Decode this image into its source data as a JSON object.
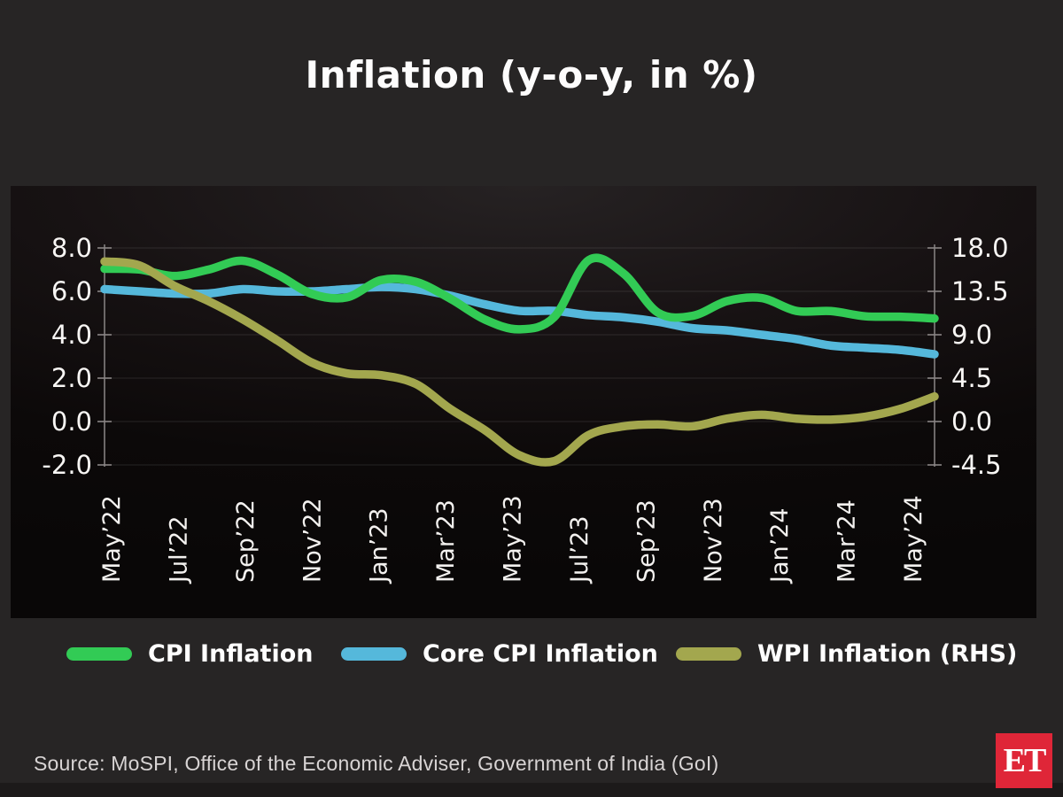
{
  "page": {
    "title": "Inflation (y-o-y, in %)",
    "source": "Source: MoSPI, Office of the Economic Adviser, Government of India (GoI)",
    "logo_text": "ET",
    "logo_color": "#df2638",
    "background_color": "#272525",
    "panel_color": "#0d0a0b"
  },
  "chart_data": {
    "type": "line",
    "title": "Inflation (y-o-y, in %)",
    "frequency": "monthly",
    "grid": "faint horizontal",
    "legend_position": "bottom",
    "x_tick_labels": [
      "May’22",
      "Jul’22",
      "Sep’22",
      "Nov’22",
      "Jan’23",
      "Mar’23",
      "May’23",
      "Jul’23",
      "Sep’23",
      "Nov’23",
      "Jan’24",
      "Mar’24",
      "May’24"
    ],
    "months": [
      "May’22",
      "Jun’22",
      "Jul’22",
      "Aug’22",
      "Sep’22",
      "Oct’22",
      "Nov’22",
      "Dec’22",
      "Jan’23",
      "Feb’23",
      "Mar’23",
      "Apr’23",
      "May’23",
      "Jun’23",
      "Jul’23",
      "Aug’23",
      "Sep’23",
      "Oct’23",
      "Nov’23",
      "Dec’23",
      "Jan’24",
      "Feb’24",
      "Mar’24",
      "Apr’24",
      "May’24"
    ],
    "left_axis": {
      "ticks": [
        8.0,
        6.0,
        4.0,
        2.0,
        0.0,
        -2.0
      ],
      "labels": [
        "8.0",
        "6.0",
        "4.0",
        "2.0",
        "0.0",
        "-2.0"
      ],
      "range": [
        -2.0,
        8.0
      ]
    },
    "right_axis": {
      "ticks": [
        18.0,
        13.5,
        9.0,
        4.5,
        0.0,
        -4.5
      ],
      "labels": [
        "18.0",
        "13.5",
        "9.0",
        "4.5",
        "0.0",
        "-4.5"
      ],
      "range": [
        -4.5,
        18.0
      ]
    },
    "series": [
      {
        "name": "CPI Inflation",
        "axis": "left",
        "color": "#32cb55",
        "values": [
          7.04,
          7.01,
          6.71,
          7.0,
          7.41,
          6.77,
          5.88,
          5.72,
          6.52,
          6.44,
          5.66,
          4.7,
          4.25,
          4.81,
          7.44,
          6.83,
          5.02,
          4.87,
          5.55,
          5.69,
          5.1,
          5.09,
          4.85,
          4.83,
          4.75
        ]
      },
      {
        "name": "Core CPI Inflation",
        "axis": "left",
        "color": "#55b8db",
        "values": [
          6.1,
          6.0,
          5.9,
          5.9,
          6.1,
          6.0,
          6.0,
          6.1,
          6.2,
          6.1,
          5.8,
          5.4,
          5.1,
          5.1,
          4.9,
          4.8,
          4.6,
          4.3,
          4.2,
          4.0,
          3.8,
          3.5,
          3.4,
          3.3,
          3.1
        ]
      },
      {
        "name": "WPI Inflation (RHS)",
        "axis": "right",
        "color": "#a3a74e",
        "values": [
          16.6,
          16.2,
          14.1,
          12.5,
          10.6,
          8.4,
          6.1,
          5.0,
          4.8,
          3.9,
          1.3,
          -0.9,
          -3.5,
          -4.1,
          -1.4,
          -0.5,
          -0.3,
          -0.5,
          0.3,
          0.7,
          0.3,
          0.2,
          0.5,
          1.3,
          2.6
        ]
      }
    ]
  }
}
